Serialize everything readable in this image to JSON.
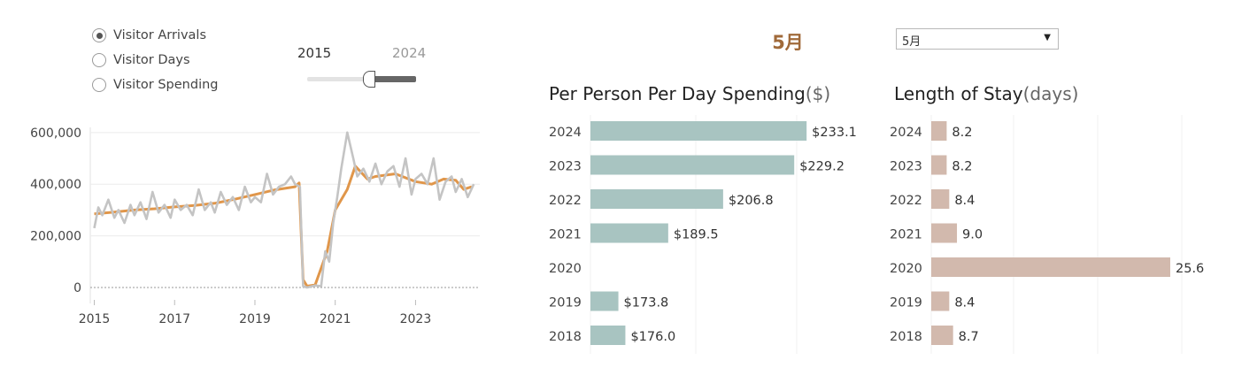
{
  "controls": {
    "measure_options": [
      {
        "label": "Visitor Arrivals",
        "selected": true
      },
      {
        "label": "Visitor Days",
        "selected": false
      },
      {
        "label": "Visitor Spending",
        "selected": false
      }
    ],
    "year_range": {
      "start_label": "2015",
      "end_label": "2024"
    },
    "month_title": "5月",
    "month_select": {
      "value": "5月"
    }
  },
  "colors": {
    "trend": "#e0964a",
    "actual": "#c4c4c4",
    "spending_bar": "#a8c4c1",
    "stay_bar": "#d2b9ad"
  },
  "chart_data": [
    {
      "type": "line",
      "title": "",
      "xlabel": "",
      "ylabel": "",
      "x_ticks": [
        "2015",
        "2017",
        "2019",
        "2021",
        "2023"
      ],
      "y_ticks": [
        "600,000",
        "400,000",
        "200,000",
        "0"
      ],
      "xlim": [
        2014.9,
        2024.6
      ],
      "ylim": [
        0,
        620000
      ],
      "series": [
        {
          "color": "#e0964a",
          "x": [
            2015.0,
            2015.5,
            2016.0,
            2016.5,
            2017.0,
            2017.5,
            2018.0,
            2018.5,
            2019.0,
            2019.5,
            2020.0,
            2020.1,
            2020.2,
            2020.3,
            2020.5,
            2020.8,
            2021.0,
            2021.3,
            2021.5,
            2021.8,
            2022.0,
            2022.5,
            2023.0,
            2023.4,
            2023.7,
            2024.0,
            2024.2,
            2024.4
          ],
          "y": [
            285000,
            292000,
            300000,
            305000,
            312000,
            318000,
            326000,
            342000,
            360000,
            378000,
            390000,
            405000,
            30000,
            5000,
            10000,
            140000,
            300000,
            380000,
            470000,
            420000,
            430000,
            440000,
            410000,
            400000,
            420000,
            415000,
            380000,
            390000
          ]
        },
        {
          "color": "#c4c4c4",
          "x": [
            2015.0,
            2015.1,
            2015.2,
            2015.35,
            2015.5,
            2015.6,
            2015.75,
            2015.9,
            2016.0,
            2016.15,
            2016.3,
            2016.45,
            2016.6,
            2016.75,
            2016.9,
            2017.0,
            2017.15,
            2017.3,
            2017.45,
            2017.6,
            2017.75,
            2017.9,
            2018.0,
            2018.15,
            2018.3,
            2018.45,
            2018.6,
            2018.75,
            2018.9,
            2019.0,
            2019.15,
            2019.3,
            2019.45,
            2019.6,
            2019.75,
            2019.9,
            2020.0,
            2020.12,
            2020.2,
            2020.3,
            2020.5,
            2020.65,
            2020.75,
            2020.85,
            2020.95,
            2021.05,
            2021.15,
            2021.3,
            2021.45,
            2021.55,
            2021.7,
            2021.85,
            2022.0,
            2022.15,
            2022.3,
            2022.45,
            2022.6,
            2022.75,
            2022.9,
            2023.0,
            2023.15,
            2023.3,
            2023.45,
            2023.6,
            2023.75,
            2023.9,
            2024.0,
            2024.15,
            2024.3,
            2024.45
          ],
          "y": [
            230000,
            310000,
            280000,
            340000,
            270000,
            300000,
            250000,
            320000,
            280000,
            330000,
            265000,
            370000,
            290000,
            320000,
            270000,
            340000,
            300000,
            320000,
            280000,
            380000,
            300000,
            330000,
            290000,
            370000,
            320000,
            350000,
            300000,
            390000,
            330000,
            350000,
            330000,
            440000,
            360000,
            390000,
            400000,
            430000,
            400000,
            390000,
            5000,
            0,
            8000,
            5000,
            140000,
            100000,
            250000,
            350000,
            460000,
            600000,
            500000,
            430000,
            460000,
            410000,
            480000,
            400000,
            450000,
            470000,
            390000,
            500000,
            360000,
            420000,
            440000,
            400000,
            500000,
            340000,
            410000,
            430000,
            370000,
            420000,
            350000,
            400000
          ]
        }
      ]
    },
    {
      "type": "bar",
      "title": "Per Person Per Day Spending",
      "title_unit": "($)",
      "orientation": "horizontal",
      "categories": [
        "2024",
        "2023",
        "2022",
        "2021",
        "2020",
        "2019",
        "2018"
      ],
      "values": [
        233.1,
        229.2,
        206.8,
        189.5,
        null,
        173.8,
        176.0
      ],
      "value_labels": [
        "$233.1",
        "$229.2",
        "$206.8",
        "$189.5",
        "",
        "$173.8",
        "$176.0"
      ],
      "xlim": [
        165,
        235
      ]
    },
    {
      "type": "bar",
      "title": "Length of Stay",
      "title_unit": "(days)",
      "orientation": "horizontal",
      "categories": [
        "2024",
        "2023",
        "2022",
        "2021",
        "2020",
        "2019",
        "2018"
      ],
      "values": [
        8.2,
        8.2,
        8.4,
        9.0,
        25.6,
        8.4,
        8.7
      ],
      "value_labels": [
        "8.2",
        "8.2",
        "8.4",
        "9.0",
        "25.6",
        "8.4",
        "8.7"
      ],
      "xlim": [
        7.0,
        25.6
      ]
    }
  ]
}
